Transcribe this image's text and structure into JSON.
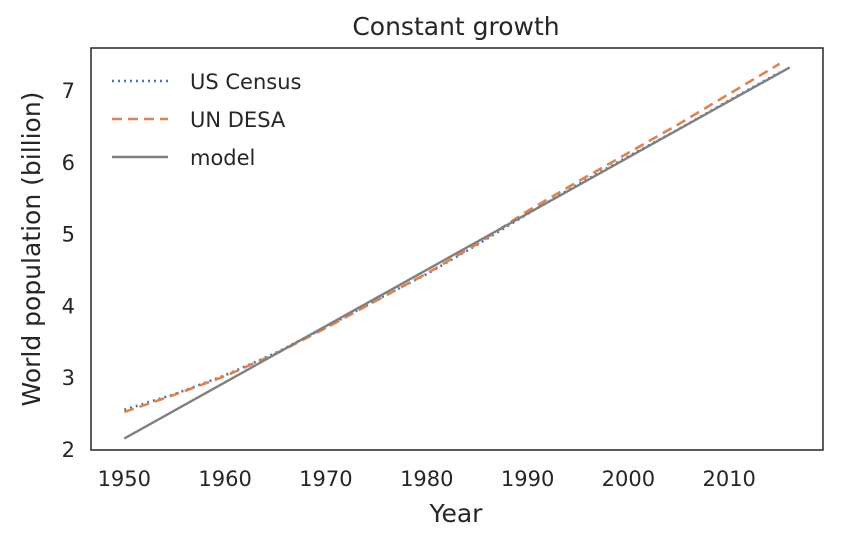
{
  "chart_data": {
    "type": "line",
    "title": "Constant growth",
    "xlabel": "Year",
    "ylabel": "World population (billion)",
    "xlim": [
      1946.7,
      2019.3
    ],
    "ylim": [
      2.0,
      7.6
    ],
    "xticks": [
      1950,
      1960,
      1970,
      1980,
      1990,
      2000,
      2010
    ],
    "yticks": [
      2,
      3,
      4,
      5,
      6,
      7
    ],
    "grid": false,
    "legend_position": "top-left",
    "series": [
      {
        "name": "US Census",
        "style": "dotted",
        "color": "#4c72b0",
        "x": [
          1950,
          1955,
          1960,
          1965,
          1970,
          1975,
          1980,
          1985,
          1990,
          1995,
          2000,
          2005,
          2010,
          2015
        ],
        "y": [
          2.56,
          2.78,
          3.04,
          3.35,
          3.71,
          4.09,
          4.45,
          4.86,
          5.29,
          5.7,
          6.09,
          6.47,
          6.87,
          7.26
        ]
      },
      {
        "name": "UN DESA",
        "style": "dashed",
        "color": "#dd8452",
        "x": [
          1950,
          1955,
          1960,
          1965,
          1970,
          1975,
          1980,
          1985,
          1990,
          1995,
          2000,
          2005,
          2010,
          2015
        ],
        "y": [
          2.53,
          2.77,
          3.03,
          3.34,
          3.7,
          4.08,
          4.46,
          4.87,
          5.33,
          5.74,
          6.14,
          6.54,
          6.96,
          7.38
        ]
      },
      {
        "name": "model",
        "style": "solid",
        "color": "#808080",
        "x": [
          1950,
          2016
        ],
        "y": [
          2.16,
          7.33
        ]
      }
    ]
  }
}
